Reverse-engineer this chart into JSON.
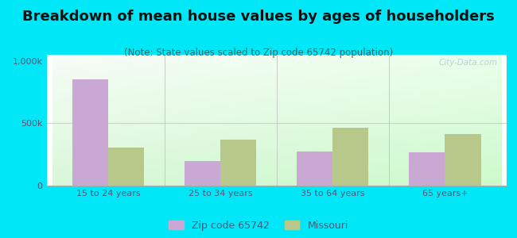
{
  "title": "Breakdown of mean house values by ages of householders",
  "subtitle": "(Note: State values scaled to Zip code 65742 population)",
  "categories": [
    "15 to 24 years",
    "25 to 34 years",
    "35 to 64 years",
    "65 years+"
  ],
  "zip_values": [
    850000,
    200000,
    275000,
    265000
  ],
  "state_values": [
    305000,
    370000,
    465000,
    415000
  ],
  "zip_color": "#c9a8d4",
  "state_color": "#b8c88a",
  "background_outer": "#00e8f8",
  "ylim": [
    0,
    1050000
  ],
  "ytick_labels": [
    "0",
    "500k",
    "1,000k"
  ],
  "watermark": "City-Data.com",
  "legend_zip_label": "Zip code 65742",
  "legend_state_label": "Missouri",
  "title_fontsize": 13,
  "subtitle_fontsize": 8.5,
  "tick_fontsize": 8,
  "legend_fontsize": 9,
  "title_color": "#111111",
  "subtitle_color": "#336666",
  "tick_color": "#555577",
  "grid_color": "#dddddd"
}
